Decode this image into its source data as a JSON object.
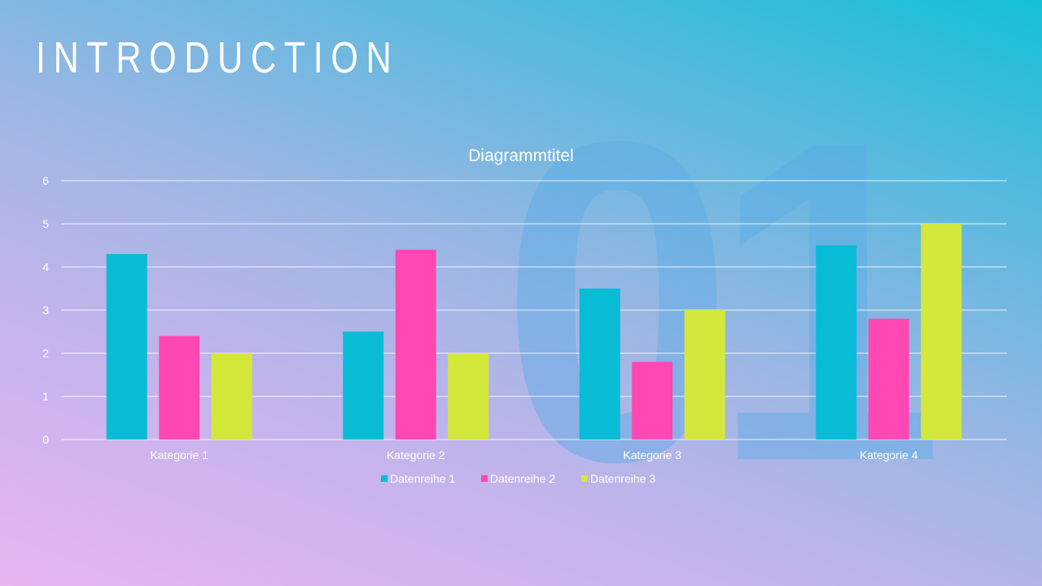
{
  "slide": {
    "title": "INTRODUCTION",
    "watermark": "01"
  },
  "chart_data": {
    "type": "bar",
    "title": "Diagrammtitel",
    "categories": [
      "Kategorie 1",
      "Kategorie 2",
      "Kategorie 3",
      "Kategorie 4"
    ],
    "series": [
      {
        "name": "Datenreihe 1",
        "values": [
          4.3,
          2.5,
          3.5,
          4.5
        ],
        "color": "#08bcd6"
      },
      {
        "name": "Datenreihe 2",
        "values": [
          2.4,
          4.4,
          1.8,
          2.8
        ],
        "color": "#ff48b4"
      },
      {
        "name": "Datenreihe 3",
        "values": [
          2,
          2,
          3,
          5
        ],
        "color": "#d4e83c"
      }
    ],
    "yticks": [
      0,
      1,
      2,
      3,
      4,
      5,
      6
    ],
    "ylim": [
      0,
      6
    ],
    "xlabel": "",
    "ylabel": "",
    "grid": true,
    "legend": "bottom"
  }
}
